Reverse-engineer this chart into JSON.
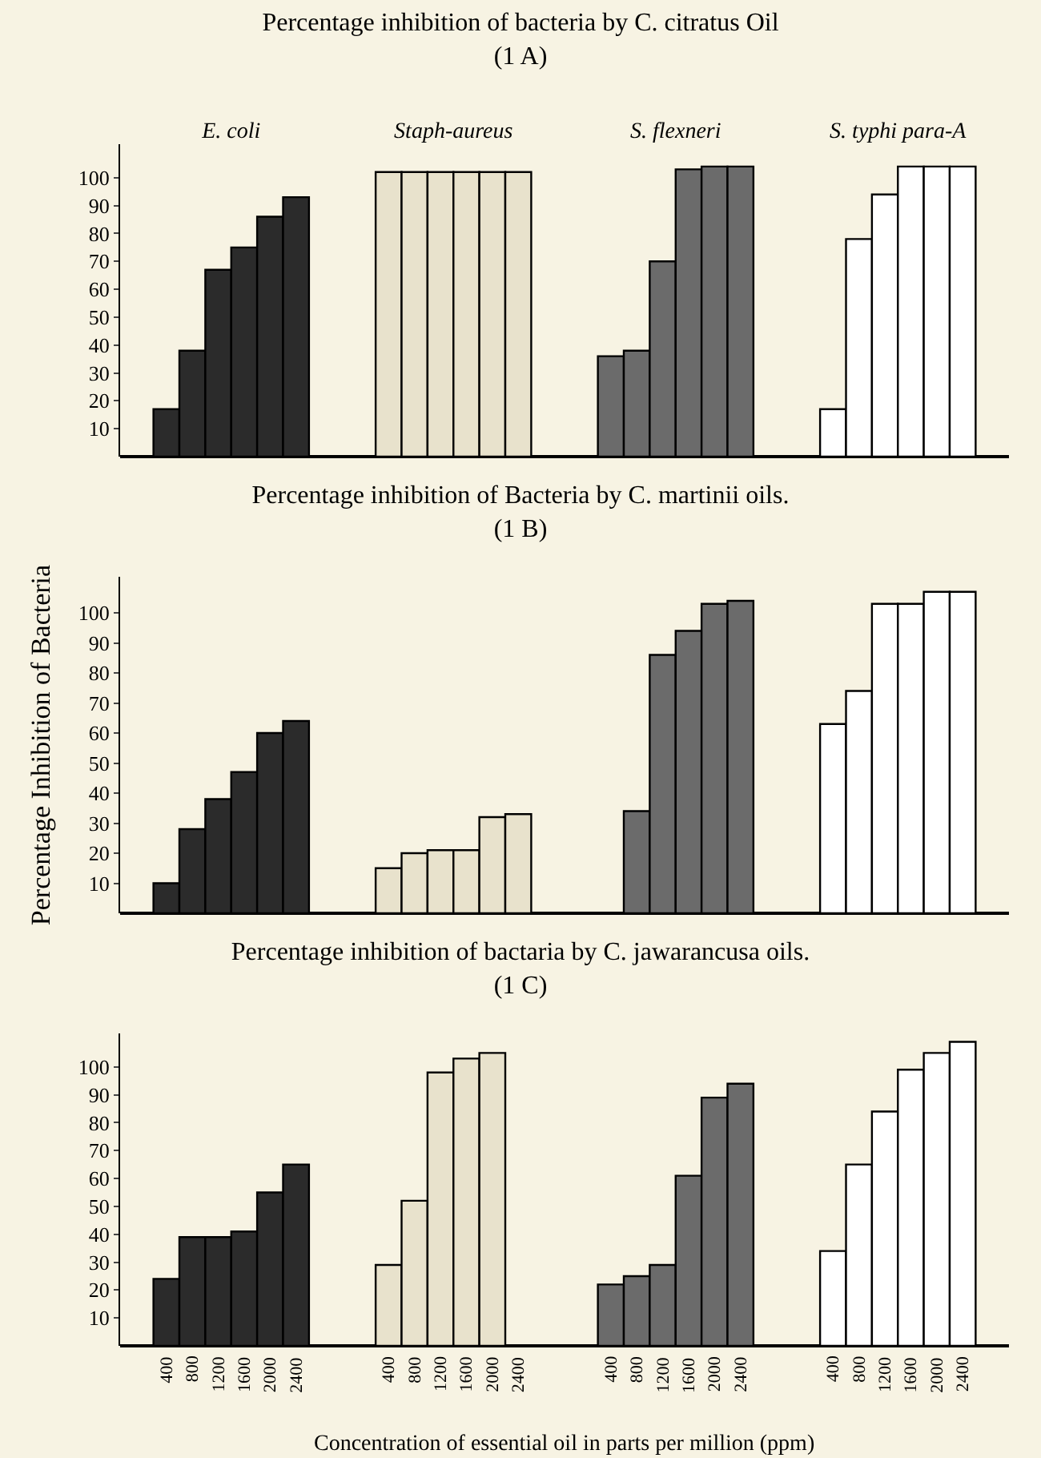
{
  "chart_data": [
    {
      "type": "bar",
      "title": "Percentage inhibition of bacteria by C. citratus Oil",
      "subtitle": "(1 A)",
      "categories": [
        "E. coli",
        "Staph-aureus",
        "S. flexneri",
        "S. typhi para-A"
      ],
      "series": [
        {
          "colors": [
            "#2b2b2b",
            "#e8e2cc",
            "#6b6b6b",
            "#ffffff"
          ],
          "values": [
            17,
            102,
            36,
            17
          ]
        },
        {
          "colors": [
            "#2b2b2b",
            "#e8e2cc",
            "#6b6b6b",
            "#ffffff"
          ],
          "values": [
            38,
            102,
            38,
            78
          ]
        },
        {
          "colors": [
            "#2b2b2b",
            "#e8e2cc",
            "#6b6b6b",
            "#ffffff"
          ],
          "values": [
            67,
            102,
            70,
            94
          ]
        },
        {
          "colors": [
            "#2b2b2b",
            "#e8e2cc",
            "#6b6b6b",
            "#ffffff"
          ],
          "values": [
            75,
            102,
            103,
            104
          ]
        },
        {
          "colors": [
            "#2b2b2b",
            "#e8e2cc",
            "#6b6b6b",
            "#ffffff"
          ],
          "values": [
            86,
            102,
            104,
            104
          ]
        },
        {
          "colors": [
            "#2b2b2b",
            "#e8e2cc",
            "#6b6b6b",
            "#ffffff"
          ],
          "values": [
            93,
            102,
            104,
            104
          ]
        }
      ],
      "ylim": [
        0,
        112
      ],
      "yticks": [
        10,
        20,
        30,
        40,
        50,
        60,
        70,
        80,
        90,
        100
      ],
      "grid": false,
      "legend": false
    },
    {
      "type": "bar",
      "title": "Percentage inhibition of Bacteria by C. martinii oils.",
      "subtitle": "(1 B)",
      "ylabel": "Percentage Inhibition of Bacteria",
      "categories": [
        null,
        null,
        null,
        null
      ],
      "series": [
        {
          "colors": [
            "#2b2b2b",
            "#e8e2cc",
            "#6b6b6b",
            "#ffffff"
          ],
          "values": [
            10,
            15,
            null,
            63
          ]
        },
        {
          "colors": [
            "#2b2b2b",
            "#e8e2cc",
            "#6b6b6b",
            "#ffffff"
          ],
          "values": [
            28,
            20,
            34,
            74
          ]
        },
        {
          "colors": [
            "#2b2b2b",
            "#e8e2cc",
            "#6b6b6b",
            "#ffffff"
          ],
          "values": [
            38,
            21,
            86,
            103
          ]
        },
        {
          "colors": [
            "#2b2b2b",
            "#e8e2cc",
            "#6b6b6b",
            "#ffffff"
          ],
          "values": [
            47,
            21,
            94,
            103
          ]
        },
        {
          "colors": [
            "#2b2b2b",
            "#e8e2cc",
            "#6b6b6b",
            "#ffffff"
          ],
          "values": [
            60,
            32,
            103,
            107
          ]
        },
        {
          "colors": [
            "#2b2b2b",
            "#e8e2cc",
            "#6b6b6b",
            "#ffffff"
          ],
          "values": [
            64,
            33,
            104,
            107
          ]
        }
      ],
      "ylim": [
        0,
        112
      ],
      "yticks": [
        10,
        20,
        30,
        40,
        50,
        60,
        70,
        80,
        90,
        100
      ],
      "grid": false,
      "legend": false
    },
    {
      "type": "bar",
      "title": "Percentage inhibition of bactaria by C. jawarancusa oils.",
      "subtitle": "(1 C)",
      "xlabel": "Concentration of essential oil in parts per million (ppm)",
      "categories": [
        null,
        null,
        null,
        null
      ],
      "series": [
        {
          "name": "400",
          "colors": [
            "#2b2b2b",
            "#e8e2cc",
            "#6b6b6b",
            "#ffffff"
          ],
          "values": [
            24,
            29,
            22,
            34
          ]
        },
        {
          "name": "800",
          "colors": [
            "#2b2b2b",
            "#e8e2cc",
            "#6b6b6b",
            "#ffffff"
          ],
          "values": [
            39,
            52,
            25,
            65
          ]
        },
        {
          "name": "1200",
          "colors": [
            "#2b2b2b",
            "#e8e2cc",
            "#6b6b6b",
            "#ffffff"
          ],
          "values": [
            39,
            98,
            29,
            84
          ]
        },
        {
          "name": "1600",
          "colors": [
            "#2b2b2b",
            "#e8e2cc",
            "#6b6b6b",
            "#ffffff"
          ],
          "values": [
            41,
            103,
            61,
            99
          ]
        },
        {
          "name": "2000",
          "colors": [
            "#2b2b2b",
            "#e8e2cc",
            "#6b6b6b",
            "#ffffff"
          ],
          "values": [
            55,
            105,
            89,
            105
          ]
        },
        {
          "name": "2400",
          "colors": [
            "#2b2b2b",
            "#e8e2cc",
            "#6b6b6b",
            "#ffffff"
          ],
          "values": [
            65,
            null,
            94,
            109
          ]
        }
      ],
      "ylim": [
        0,
        112
      ],
      "yticks": [
        10,
        20,
        30,
        40,
        50,
        60,
        70,
        80,
        90,
        100
      ],
      "grid": false,
      "legend": false
    }
  ]
}
